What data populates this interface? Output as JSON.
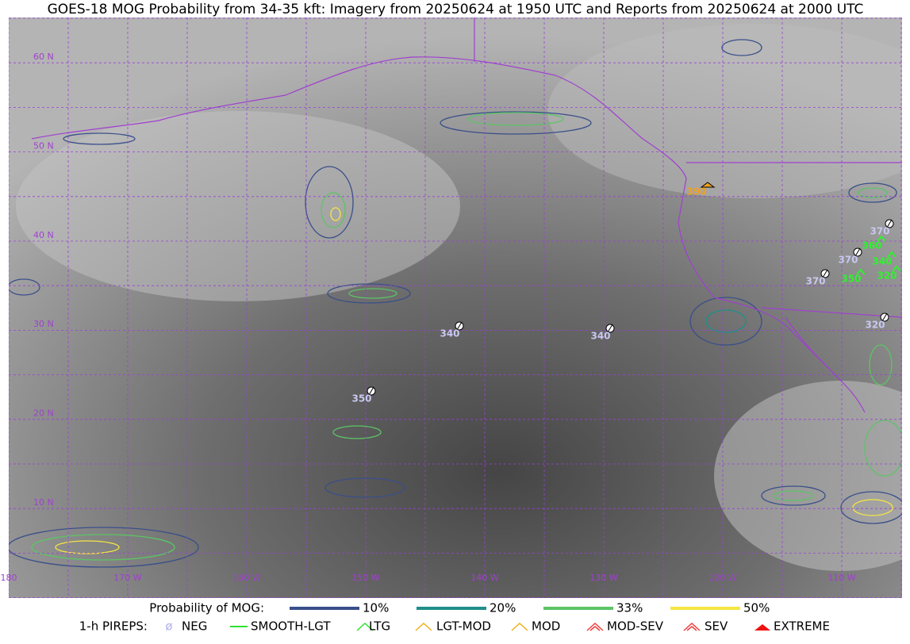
{
  "title": "GOES-18 MOG Probability from 34-35 kft: Imagery from 20250624 at 1950 UTC and Reports from 20250624 at 2000 UTC",
  "lat_labels": [
    "60 N",
    "50 N",
    "40 N",
    "30 N",
    "20 N",
    "10 N"
  ],
  "lon_labels": [
    "180",
    "170 W",
    "160 W",
    "150 W",
    "140 W",
    "130 W",
    "120 W",
    "110 W"
  ],
  "reports": [
    {
      "level": "340",
      "color": "#c8c8f0"
    },
    {
      "level": "340",
      "color": "#c8c8f0"
    },
    {
      "level": "350",
      "color": "#c8c8f0"
    },
    {
      "level": "390",
      "color": "#f0a020"
    },
    {
      "level": "370",
      "color": "#c8c8f0"
    },
    {
      "level": "360",
      "color": "#30f030"
    },
    {
      "level": "370",
      "color": "#c8c8f0"
    },
    {
      "level": "340",
      "color": "#30f030"
    },
    {
      "level": "370",
      "color": "#c8c8f0"
    },
    {
      "level": "350",
      "color": "#30f030"
    },
    {
      "level": "320",
      "color": "#30f030"
    },
    {
      "level": "320",
      "color": "#c8c8f0"
    }
  ],
  "legend": {
    "mog_label": "Probability of MOG:",
    "mog": [
      {
        "label": "10%",
        "color": "#3a4f8a"
      },
      {
        "label": "20%",
        "color": "#1f8f8a"
      },
      {
        "label": "33%",
        "color": "#5cc465"
      },
      {
        "label": "50%",
        "color": "#f5e642"
      }
    ],
    "pirep_label": "1-h PIREPS:",
    "pireps": [
      {
        "label": "NEG",
        "color": "#b0b0f0"
      },
      {
        "label": "SMOOTH-LGT",
        "color": "#30e030"
      },
      {
        "label": "LTG",
        "color": "#30e030"
      },
      {
        "label": "LGT-MOD",
        "color": "#f0b020"
      },
      {
        "label": "MOD",
        "color": "#f0b020"
      },
      {
        "label": "MOD-SEV",
        "color": "#f04040"
      },
      {
        "label": "SEV",
        "color": "#f04040"
      },
      {
        "label": "EXTREME",
        "color": "#f01010"
      }
    ]
  }
}
